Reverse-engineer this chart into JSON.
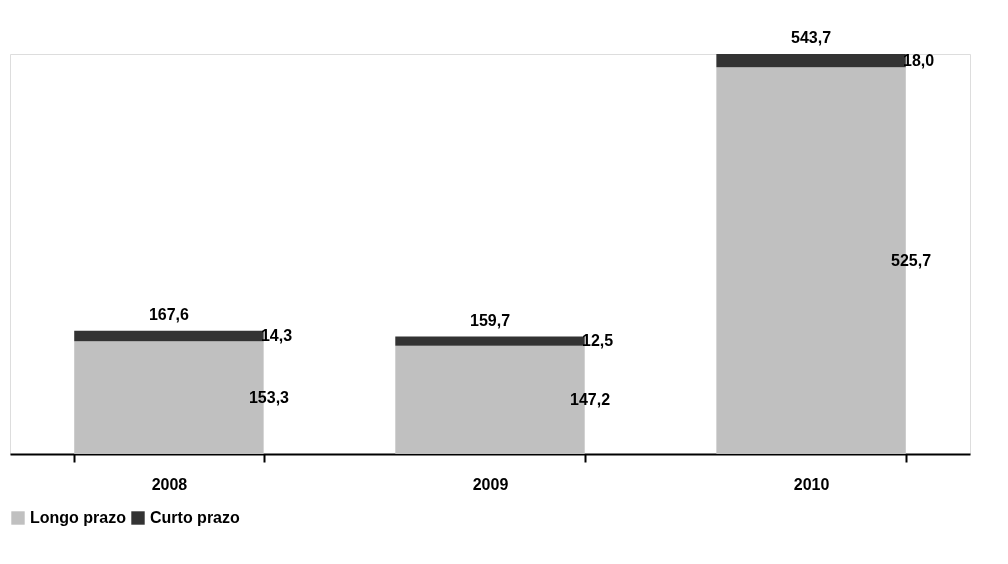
{
  "chart_data": {
    "type": "bar",
    "stacked": true,
    "categories": [
      "2008",
      "2009",
      "2010"
    ],
    "series": [
      {
        "name": "Longo prazo",
        "color": "#c0c0c0",
        "values": [
          153.3,
          147.2,
          525.7
        ],
        "value_labels": [
          "153,3",
          "147,2",
          "525,7"
        ]
      },
      {
        "name": "Curto prazo",
        "color": "#333333",
        "values": [
          14.3,
          12.5,
          18.0
        ],
        "value_labels": [
          "14,3",
          "12,5",
          "18,0"
        ]
      }
    ],
    "totals": [
      "167,6",
      "159,7",
      "543,7"
    ],
    "legend": "bottom",
    "grid": false,
    "tick_labels": "x"
  }
}
